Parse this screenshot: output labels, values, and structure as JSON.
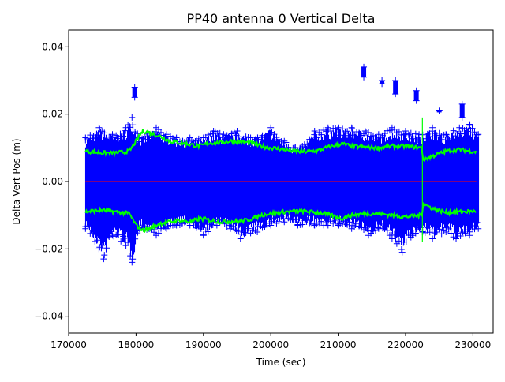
{
  "chart_data": {
    "type": "scatter",
    "title": "PP40 antenna 0 Vertical Delta",
    "xlabel": "Time (sec)",
    "ylabel": "Delta Vert Pos (m)",
    "xlim": [
      170000,
      233000
    ],
    "ylim": [
      -0.045,
      0.045
    ],
    "xticks": [
      170000,
      180000,
      190000,
      200000,
      210000,
      220000,
      230000
    ],
    "yticks": [
      -0.04,
      -0.02,
      0.0,
      0.02,
      0.04
    ],
    "xtick_labels": [
      "170000",
      "180000",
      "190000",
      "200000",
      "210000",
      "220000",
      "230000"
    ],
    "ytick_labels": [
      "−0.04",
      "−0.02",
      "0.00",
      "0.02",
      "0.04"
    ],
    "grid": false,
    "legend": "none",
    "colors": {
      "points": "#0000ff",
      "envelope": "#00ff00",
      "zero_line": "#ff0000",
      "axes": "#000000"
    },
    "series": [
      {
        "kind": "scatter-points",
        "marker": "+",
        "x_range": [
          172500,
          230800
        ],
        "core_band": [
          -0.01,
          0.01
        ],
        "upper_extent": [
          [
            172500,
            0.013
          ],
          [
            174500,
            0.016
          ],
          [
            176500,
            0.014
          ],
          [
            178500,
            0.016
          ],
          [
            179400,
            0.019
          ],
          [
            180500,
            0.013
          ],
          [
            183000,
            0.016
          ],
          [
            184500,
            0.014
          ],
          [
            186000,
            0.013
          ],
          [
            188000,
            0.013
          ],
          [
            190000,
            0.013
          ],
          [
            191500,
            0.015
          ],
          [
            193000,
            0.014
          ],
          [
            195000,
            0.015
          ],
          [
            197000,
            0.013
          ],
          [
            200000,
            0.016
          ],
          [
            202000,
            0.012
          ],
          [
            203500,
            0.01
          ],
          [
            205000,
            0.011
          ],
          [
            206500,
            0.015
          ],
          [
            208500,
            0.016
          ],
          [
            210000,
            0.016
          ],
          [
            212000,
            0.016
          ],
          [
            214000,
            0.015
          ],
          [
            216000,
            0.014
          ],
          [
            218000,
            0.016
          ],
          [
            220000,
            0.015
          ],
          [
            222000,
            0.014
          ],
          [
            224000,
            0.016
          ],
          [
            226000,
            0.014
          ],
          [
            228000,
            0.016
          ],
          [
            229500,
            0.017
          ],
          [
            230800,
            0.014
          ]
        ],
        "lower_extent": [
          [
            172500,
            -0.014
          ],
          [
            174500,
            -0.02
          ],
          [
            175200,
            -0.023
          ],
          [
            176500,
            -0.016
          ],
          [
            178500,
            -0.019
          ],
          [
            179400,
            -0.024
          ],
          [
            180500,
            -0.014
          ],
          [
            183000,
            -0.016
          ],
          [
            184500,
            -0.014
          ],
          [
            186000,
            -0.013
          ],
          [
            188000,
            -0.013
          ],
          [
            190000,
            -0.016
          ],
          [
            192000,
            -0.013
          ],
          [
            194000,
            -0.014
          ],
          [
            195500,
            -0.017
          ],
          [
            198000,
            -0.015
          ],
          [
            200000,
            -0.013
          ],
          [
            202000,
            -0.012
          ],
          [
            204000,
            -0.013
          ],
          [
            206500,
            -0.013
          ],
          [
            208500,
            -0.013
          ],
          [
            210000,
            -0.013
          ],
          [
            212000,
            -0.014
          ],
          [
            214500,
            -0.016
          ],
          [
            216000,
            -0.014
          ],
          [
            218000,
            -0.017
          ],
          [
            219500,
            -0.021
          ],
          [
            221000,
            -0.016
          ],
          [
            222500,
            -0.015
          ],
          [
            224000,
            -0.017
          ],
          [
            226000,
            -0.015
          ],
          [
            227500,
            -0.017
          ],
          [
            229500,
            -0.016
          ],
          [
            230800,
            -0.014
          ]
        ],
        "outlier_clusters": [
          {
            "x": 179800,
            "y": [
              0.025,
              0.028
            ]
          },
          {
            "x": 213800,
            "y": [
              0.031,
              0.034
            ]
          },
          {
            "x": 216500,
            "y": [
              0.029,
              0.03
            ]
          },
          {
            "x": 218500,
            "y": [
              0.026,
              0.03
            ]
          },
          {
            "x": 221600,
            "y": [
              0.024,
              0.027
            ]
          },
          {
            "x": 225000,
            "y": [
              0.021,
              0.021
            ]
          },
          {
            "x": 228400,
            "y": [
              0.019,
              0.023
            ]
          }
        ]
      },
      {
        "kind": "envelope-upper",
        "points": [
          [
            172500,
            0.009
          ],
          [
            175000,
            0.0085
          ],
          [
            177000,
            0.0085
          ],
          [
            179000,
            0.009
          ],
          [
            180000,
            0.012
          ],
          [
            181000,
            0.015
          ],
          [
            182000,
            0.0145
          ],
          [
            183500,
            0.0135
          ],
          [
            185000,
            0.012
          ],
          [
            186500,
            0.0115
          ],
          [
            188000,
            0.011
          ],
          [
            189500,
            0.0105
          ],
          [
            191000,
            0.0115
          ],
          [
            192500,
            0.0115
          ],
          [
            194000,
            0.012
          ],
          [
            195500,
            0.0118
          ],
          [
            197000,
            0.0115
          ],
          [
            198500,
            0.0105
          ],
          [
            200000,
            0.01
          ],
          [
            202000,
            0.0095
          ],
          [
            203500,
            0.009
          ],
          [
            205000,
            0.0088
          ],
          [
            207000,
            0.0092
          ],
          [
            209000,
            0.0105
          ],
          [
            210500,
            0.0112
          ],
          [
            212000,
            0.0105
          ],
          [
            214000,
            0.0102
          ],
          [
            216000,
            0.01
          ],
          [
            218000,
            0.0105
          ],
          [
            220000,
            0.0105
          ],
          [
            222400,
            0.01
          ],
          [
            222600,
            0.0065
          ],
          [
            224000,
            0.0075
          ],
          [
            226000,
            0.009
          ],
          [
            228000,
            0.0095
          ],
          [
            230500,
            0.0088
          ]
        ]
      },
      {
        "kind": "envelope-lower",
        "points": [
          [
            172500,
            -0.009
          ],
          [
            175000,
            -0.0085
          ],
          [
            177000,
            -0.009
          ],
          [
            179000,
            -0.0095
          ],
          [
            180000,
            -0.013
          ],
          [
            181000,
            -0.0145
          ],
          [
            182000,
            -0.014
          ],
          [
            183500,
            -0.0125
          ],
          [
            185000,
            -0.012
          ],
          [
            186500,
            -0.0115
          ],
          [
            188000,
            -0.012
          ],
          [
            189500,
            -0.011
          ],
          [
            191000,
            -0.0115
          ],
          [
            192500,
            -0.012
          ],
          [
            194000,
            -0.0118
          ],
          [
            195500,
            -0.0118
          ],
          [
            197000,
            -0.0112
          ],
          [
            198500,
            -0.01
          ],
          [
            200000,
            -0.0095
          ],
          [
            202000,
            -0.009
          ],
          [
            203500,
            -0.0088
          ],
          [
            205000,
            -0.0088
          ],
          [
            207000,
            -0.0092
          ],
          [
            209000,
            -0.01
          ],
          [
            210500,
            -0.011
          ],
          [
            212000,
            -0.01
          ],
          [
            214000,
            -0.0095
          ],
          [
            216000,
            -0.0095
          ],
          [
            218000,
            -0.01
          ],
          [
            220000,
            -0.0105
          ],
          [
            222400,
            -0.01
          ],
          [
            222600,
            -0.0065
          ],
          [
            224000,
            -0.008
          ],
          [
            226000,
            -0.0092
          ],
          [
            228000,
            -0.009
          ],
          [
            230500,
            -0.0088
          ]
        ]
      },
      {
        "kind": "spike",
        "x": 222500,
        "y_range": [
          -0.018,
          0.019
        ]
      },
      {
        "kind": "zero-line",
        "x_range": [
          172500,
          230500
        ],
        "y": 0.0
      }
    ]
  }
}
